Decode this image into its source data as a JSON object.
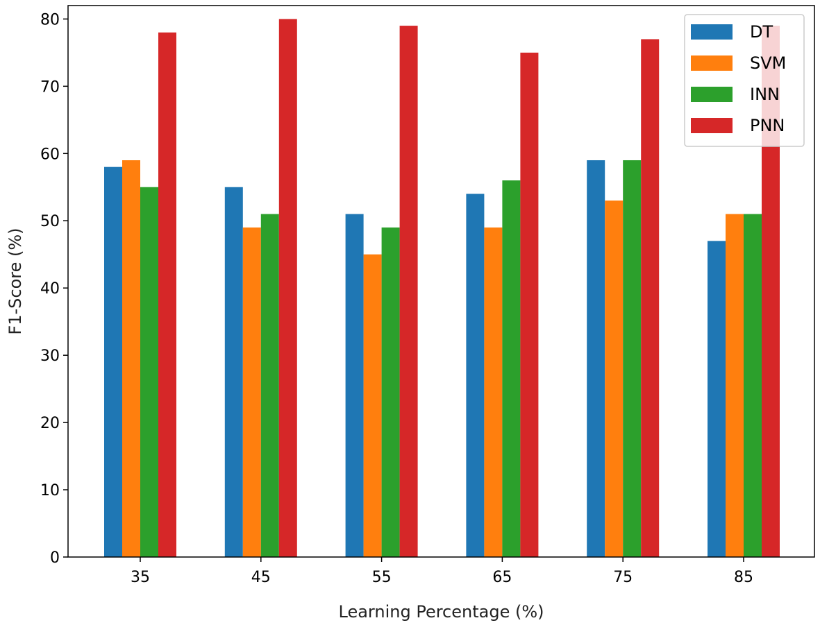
{
  "chart_data": {
    "type": "bar",
    "categories": [
      "35",
      "45",
      "55",
      "65",
      "75",
      "85"
    ],
    "series": [
      {
        "name": "DT",
        "color": "#1f77b4",
        "values": [
          58,
          55,
          51,
          54,
          59,
          47
        ]
      },
      {
        "name": "SVM",
        "color": "#ff7f0e",
        "values": [
          59,
          49,
          45,
          49,
          53,
          51
        ]
      },
      {
        "name": "INN",
        "color": "#2ca02c",
        "values": [
          55,
          51,
          49,
          56,
          59,
          51
        ]
      },
      {
        "name": "PNN",
        "color": "#d62728",
        "values": [
          78,
          80,
          79,
          75,
          77,
          79
        ]
      }
    ],
    "xlabel": "Learning Percentage (%)",
    "ylabel": "F1-Score (%)",
    "ylim": [
      0,
      82
    ],
    "yticks": [
      0,
      10,
      20,
      30,
      40,
      50,
      60,
      70,
      80
    ],
    "legend_position": "top-right",
    "grid": false
  }
}
